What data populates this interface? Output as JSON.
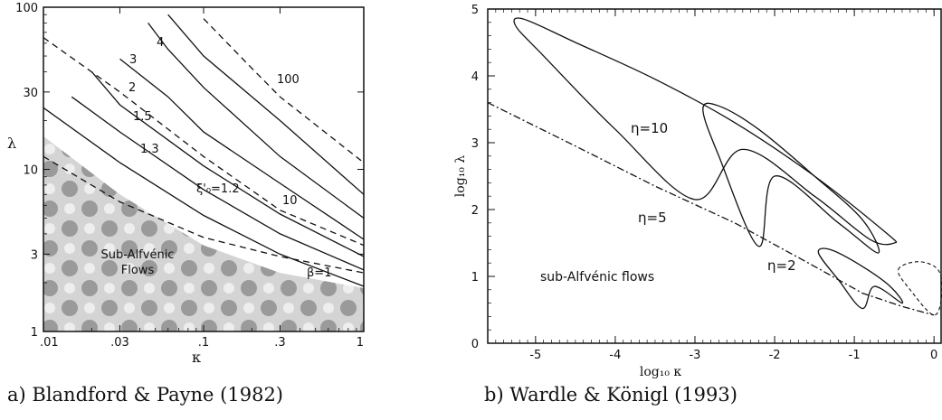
{
  "captions": {
    "a": "a) Blandford & Payne (1982)",
    "b": "b) Wardle & Königl (1993)"
  },
  "chart_data": [
    {
      "type": "line",
      "xlabel": "κ",
      "ylabel": "λ",
      "xscale": "log",
      "yscale": "log",
      "xlim": [
        0.01,
        1
      ],
      "ylim": [
        1,
        100
      ],
      "xticks": [
        ".01",
        ".03",
        ".1",
        ".3",
        "1"
      ],
      "yticks": [
        "1",
        "3",
        "10",
        "30",
        "100"
      ],
      "region_label": [
        "Sub-Alfvénic",
        "Flows"
      ],
      "series": [
        {
          "name": "ξ'₀=1.2",
          "style": "solid",
          "x": [
            0.01,
            0.03,
            0.1,
            0.3,
            1
          ],
          "y": [
            24,
            11,
            5.2,
            3.0,
            1.9
          ]
        },
        {
          "name": "1.3",
          "style": "solid",
          "x": [
            0.015,
            0.03,
            0.1,
            0.3,
            1
          ],
          "y": [
            28,
            17,
            7.5,
            4.0,
            2.4
          ]
        },
        {
          "name": "1.5",
          "style": "solid",
          "x": [
            0.02,
            0.03,
            0.1,
            0.3,
            1
          ],
          "y": [
            40,
            25,
            10.5,
            5.3,
            2.9
          ]
        },
        {
          "name": "2",
          "style": "solid",
          "x": [
            0.03,
            0.06,
            0.1,
            0.3,
            1
          ],
          "y": [
            48,
            28,
            17,
            8.2,
            3.7
          ]
        },
        {
          "name": "3",
          "style": "solid",
          "x": [
            0.045,
            0.06,
            0.1,
            0.3,
            1
          ],
          "y": [
            80,
            55,
            32,
            12,
            5.0
          ]
        },
        {
          "name": "4",
          "style": "solid",
          "x": [
            0.06,
            0.1,
            0.3,
            1
          ],
          "y": [
            90,
            50,
            20,
            7.0
          ]
        },
        {
          "name": "100",
          "style": "dashed",
          "x": [
            0.1,
            0.2,
            0.3,
            1
          ],
          "y": [
            85,
            42,
            28,
            11
          ]
        },
        {
          "name": "10",
          "style": "dashed",
          "x": [
            0.01,
            0.03,
            0.1,
            0.3,
            1
          ],
          "y": [
            65,
            30,
            12,
            5.6,
            3.4
          ]
        },
        {
          "name": "β=1",
          "style": "dashed",
          "x": [
            0.01,
            0.03,
            0.1,
            0.3,
            1
          ],
          "y": [
            12,
            6.3,
            3.8,
            2.9,
            2.3
          ]
        },
        {
          "name": "sub-Alfvénic boundary",
          "style": "shade",
          "x": [
            0.01,
            0.03,
            0.1,
            0.3,
            1
          ],
          "y": [
            16,
            7.0,
            3.4,
            2.3,
            1.85
          ]
        }
      ]
    },
    {
      "type": "line",
      "xlabel": "log₁₀ κ",
      "ylabel": "log₁₀ λ",
      "xlim": [
        -5.6,
        0.1
      ],
      "ylim": [
        0,
        5
      ],
      "xticks": [
        -5,
        -4,
        -3,
        -2,
        -1,
        0
      ],
      "yticks": [
        0,
        1,
        2,
        3,
        4,
        5
      ],
      "region_label": "sub-Alfvénic flows",
      "series": [
        {
          "name": "η=10",
          "style": "solid-loop",
          "x": [
            -5.25,
            -5.15,
            -4.5,
            -3.5,
            -2.5,
            -1.5,
            -0.6,
            -0.5,
            -0.8,
            -1.5,
            -2.4,
            -3.0,
            -4.0,
            -4.9,
            -5.25
          ],
          "y": [
            4.75,
            4.85,
            4.5,
            3.95,
            3.3,
            2.5,
            1.65,
            1.5,
            1.55,
            2.2,
            2.9,
            2.15,
            3.2,
            4.3,
            4.75
          ]
        },
        {
          "name": "η=5",
          "style": "solid-loop",
          "x": [
            -2.9,
            -2.7,
            -2.2,
            -1.5,
            -0.9,
            -0.7,
            -1.2,
            -2.0,
            -2.2,
            -2.7,
            -2.9
          ],
          "y": [
            3.5,
            3.55,
            3.2,
            2.5,
            1.85,
            1.35,
            1.8,
            2.5,
            1.45,
            2.8,
            3.5
          ]
        },
        {
          "name": "η=2",
          "style": "solid-loop",
          "x": [
            -1.45,
            -1.3,
            -0.9,
            -0.55,
            -0.4,
            -0.75,
            -0.9,
            -1.2,
            -1.45
          ],
          "y": [
            1.35,
            1.4,
            1.15,
            0.85,
            0.6,
            0.85,
            0.52,
            0.95,
            1.35
          ]
        },
        {
          "name": "sub-Alfvénic boundary",
          "style": "dash-dot",
          "x": [
            -5.6,
            -4.5,
            -3.5,
            -2.5,
            -1.5,
            -0.9,
            -0.4,
            0.0
          ],
          "y": [
            3.6,
            2.95,
            2.35,
            1.8,
            1.15,
            0.75,
            0.55,
            0.42
          ]
        },
        {
          "name": "closing curve",
          "style": "dotted",
          "x": [
            -0.45,
            -0.2,
            0.05,
            0.1,
            0.0,
            -0.3,
            -0.45
          ],
          "y": [
            1.1,
            1.22,
            1.1,
            0.75,
            0.42,
            0.8,
            1.1
          ]
        }
      ]
    }
  ]
}
